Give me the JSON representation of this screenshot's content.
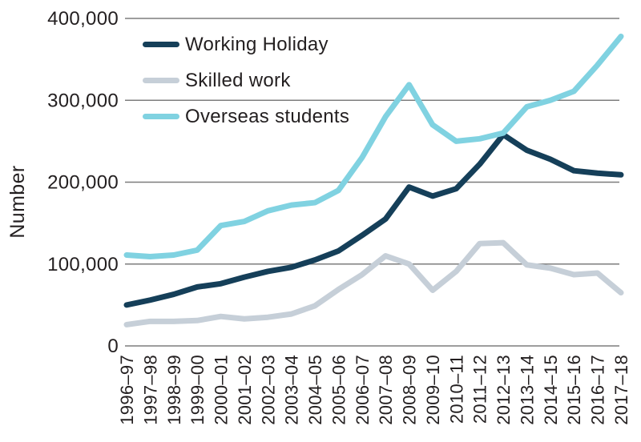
{
  "chart_data": {
    "type": "line",
    "title": "",
    "xlabel": "",
    "ylabel": "Number",
    "ylim": [
      0,
      400000
    ],
    "y_ticks": [
      "0",
      "100,000",
      "200,000",
      "300,000",
      "400,000"
    ],
    "grid": "horizontal",
    "legend_position": "top-left-inside",
    "categories": [
      "1996–97",
      "1997–98",
      "1998–99",
      "1999–00",
      "2000–01",
      "2001–02",
      "2002–03",
      "2003–04",
      "2004–05",
      "2005–06",
      "2006–07",
      "2007–08",
      "2008–09",
      "2009–10",
      "2010–11",
      "2011–12",
      "2012–13",
      "2013–14",
      "2014–15",
      "2015–16",
      "2016–17",
      "2017–18"
    ],
    "series": [
      {
        "name": "Working Holiday",
        "color": "#153f59",
        "values": [
          50000,
          56000,
          63000,
          72000,
          76000,
          84000,
          91000,
          96000,
          105000,
          116000,
          135000,
          155000,
          194000,
          183000,
          192000,
          222000,
          258000,
          239000,
          228000,
          214000,
          211000,
          209000
        ]
      },
      {
        "name": "Skilled work",
        "color": "#c6cfd8",
        "values": [
          26000,
          30000,
          30000,
          31000,
          36000,
          33000,
          35000,
          39000,
          49000,
          69000,
          87000,
          110000,
          100000,
          68000,
          91000,
          125000,
          126000,
          99000,
          95000,
          87000,
          89000,
          65000
        ]
      },
      {
        "name": "Overseas students",
        "color": "#80d2e1",
        "values": [
          111000,
          109000,
          111000,
          117000,
          147000,
          152000,
          165000,
          172000,
          175000,
          190000,
          230000,
          280000,
          319000,
          270000,
          250000,
          253000,
          260000,
          292000,
          300000,
          311000,
          343000,
          378000
        ]
      }
    ]
  },
  "colors": {
    "gridline": "#7d7d7d",
    "text": "#231f20",
    "background": "#ffffff"
  }
}
